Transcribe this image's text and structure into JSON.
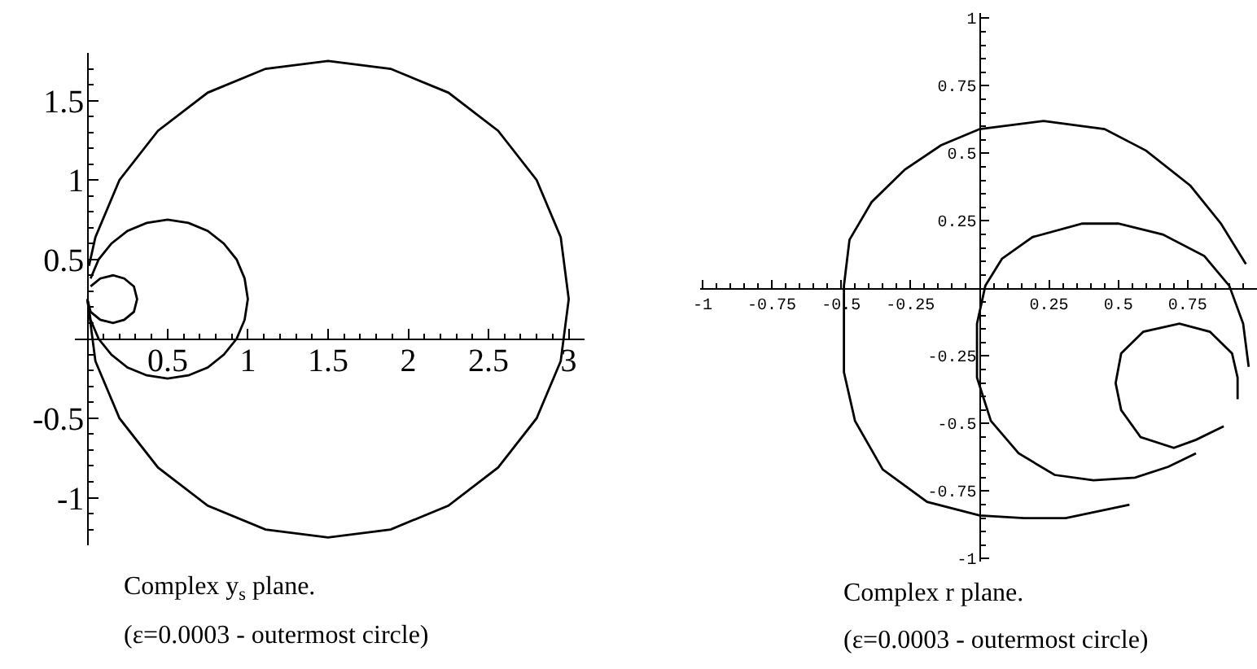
{
  "chart_data": [
    {
      "type": "line",
      "series": [
        {
          "color": "#000000",
          "x": [
            0.0,
            0.05,
            0.2,
            0.44,
            0.75,
            1.11,
            1.5,
            1.89,
            2.25,
            2.56,
            2.8,
            2.95,
            3.0,
            2.95,
            2.8,
            2.56,
            2.25,
            1.89,
            1.5,
            1.11,
            0.75,
            0.44,
            0.2,
            0.05,
            0.01
          ],
          "values": [
            0.25,
            -0.14,
            -0.5,
            -0.81,
            -1.05,
            -1.2,
            -1.25,
            -1.2,
            -1.05,
            -0.81,
            -0.5,
            -0.14,
            0.25,
            0.64,
            1.0,
            1.31,
            1.55,
            1.7,
            1.75,
            1.7,
            1.55,
            1.31,
            1.0,
            0.64,
            0.46
          ]
        },
        {
          "color": "#000000",
          "x": [
            0.0,
            0.02,
            0.07,
            0.15,
            0.25,
            0.37,
            0.5,
            0.63,
            0.75,
            0.85,
            0.93,
            0.98,
            1.0,
            0.98,
            0.93,
            0.85,
            0.75,
            0.63,
            0.5,
            0.37,
            0.25,
            0.15,
            0.07,
            0.02
          ],
          "values": [
            0.25,
            0.12,
            0.0,
            -0.1,
            -0.18,
            -0.23,
            -0.25,
            -0.23,
            -0.18,
            -0.1,
            0.0,
            0.12,
            0.25,
            0.38,
            0.5,
            0.6,
            0.68,
            0.73,
            0.75,
            0.73,
            0.68,
            0.6,
            0.5,
            0.38
          ]
        },
        {
          "color": "#000000",
          "x": [
            0.0,
            0.02,
            0.08,
            0.16,
            0.23,
            0.29,
            0.31,
            0.29,
            0.23,
            0.16,
            0.08,
            0.02
          ],
          "values": [
            0.25,
            0.17,
            0.12,
            0.1,
            0.12,
            0.17,
            0.25,
            0.33,
            0.38,
            0.4,
            0.38,
            0.33
          ]
        }
      ],
      "xlim": [
        -0.08,
        3.1
      ],
      "ylim": [
        -1.3,
        1.8
      ],
      "xticks": [
        {
          "value": 0.1,
          "label": null
        },
        {
          "value": 0.2,
          "label": null
        },
        {
          "value": 0.3,
          "label": null
        },
        {
          "value": 0.4,
          "label": null
        },
        0.5,
        {
          "value": 0.6,
          "label": null
        },
        {
          "value": 0.7,
          "label": null
        },
        {
          "value": 0.8,
          "label": null
        },
        {
          "value": 0.9,
          "label": null
        },
        1,
        {
          "value": 1.1,
          "label": null
        },
        {
          "value": 1.2,
          "label": null
        },
        {
          "value": 1.3,
          "label": null
        },
        {
          "value": 1.4,
          "label": null
        },
        1.5,
        {
          "value": 1.6,
          "label": null
        },
        {
          "value": 1.7,
          "label": null
        },
        {
          "value": 1.8,
          "label": null
        },
        {
          "value": 1.9,
          "label": null
        },
        2,
        {
          "value": 2.1,
          "label": null
        },
        {
          "value": 2.2,
          "label": null
        },
        {
          "value": 2.3,
          "label": null
        },
        {
          "value": 2.4,
          "label": null
        },
        2.5,
        {
          "value": 2.6,
          "label": null
        },
        {
          "value": 2.7,
          "label": null
        },
        {
          "value": 2.8,
          "label": null
        },
        {
          "value": 2.9,
          "label": null
        },
        3
      ],
      "yticks": [
        {
          "value": -1.2,
          "label": null
        },
        {
          "value": -1.1,
          "label": null
        },
        -1,
        {
          "value": -0.9,
          "label": null
        },
        {
          "value": -0.8,
          "label": null
        },
        {
          "value": -0.7,
          "label": null
        },
        {
          "value": -0.6,
          "label": null
        },
        -0.5,
        {
          "value": -0.4,
          "label": null
        },
        {
          "value": -0.3,
          "label": null
        },
        {
          "value": -0.2,
          "label": null
        },
        {
          "value": -0.1,
          "label": null
        },
        {
          "value": 0.1,
          "label": null
        },
        {
          "value": 0.2,
          "label": null
        },
        {
          "value": 0.3,
          "label": null
        },
        {
          "value": 0.4,
          "label": null
        },
        0.5,
        {
          "value": 0.6,
          "label": null
        },
        {
          "value": 0.7,
          "label": null
        },
        {
          "value": 0.8,
          "label": null
        },
        {
          "value": 0.9,
          "label": null
        },
        1,
        {
          "value": 1.1,
          "label": null
        },
        {
          "value": 1.2,
          "label": null
        },
        {
          "value": 1.3,
          "label": null
        },
        {
          "value": 1.4,
          "label": null
        },
        1.5,
        {
          "value": 1.6,
          "label": null
        },
        {
          "value": 1.7,
          "label": null
        }
      ],
      "annotations": [
        "Complex y$_{s}$ plane.",
        "(ε=0.0003 - outermost circle)"
      ]
    },
    {
      "type": "line",
      "series": [
        {
          "color": "#000000",
          "x": [
            0.54,
            0.31,
            0.16,
            0.0,
            -0.19,
            -0.35,
            -0.45,
            -0.49,
            -0.49,
            -0.49,
            -0.47,
            -0.39,
            -0.27,
            -0.14,
            0.0,
            0.23,
            0.45,
            0.6,
            0.76,
            0.87,
            0.96
          ],
          "values": [
            -0.8,
            -0.85,
            -0.85,
            -0.84,
            -0.79,
            -0.67,
            -0.49,
            -0.31,
            -0.13,
            0.01,
            0.18,
            0.32,
            0.44,
            0.53,
            0.59,
            0.62,
            0.59,
            0.51,
            0.38,
            0.24,
            0.09
          ]
        },
        {
          "color": "#000000",
          "x": [
            0.78,
            0.68,
            0.56,
            0.41,
            0.27,
            0.14,
            0.04,
            -0.01,
            -0.01,
            0.02,
            0.08,
            0.19,
            0.37,
            0.5,
            0.66,
            0.81,
            0.9,
            0.95,
            0.97
          ],
          "values": [
            -0.61,
            -0.66,
            -0.7,
            -0.71,
            -0.69,
            -0.61,
            -0.49,
            -0.33,
            -0.13,
            0.01,
            0.11,
            0.19,
            0.24,
            0.24,
            0.2,
            0.12,
            0.01,
            -0.13,
            -0.29
          ]
        },
        {
          "color": "#000000",
          "x": [
            0.88,
            0.78,
            0.7,
            0.58,
            0.51,
            0.49,
            0.51,
            0.59,
            0.72,
            0.83,
            0.91,
            0.93,
            0.93
          ],
          "values": [
            -0.51,
            -0.56,
            -0.59,
            -0.55,
            -0.45,
            -0.35,
            -0.24,
            -0.16,
            -0.13,
            -0.16,
            -0.24,
            -0.33,
            -0.41
          ]
        }
      ],
      "xlim": [
        -1.01,
        1.0
      ],
      "ylim": [
        -1.01,
        1.02
      ],
      "xticks": [
        -1,
        {
          "value": -0.95,
          "label": null
        },
        {
          "value": -0.9,
          "label": null
        },
        {
          "value": -0.85,
          "label": null
        },
        {
          "value": -0.8,
          "label": null
        },
        -0.75,
        {
          "value": -0.7,
          "label": null
        },
        {
          "value": -0.65,
          "label": null
        },
        {
          "value": -0.6,
          "label": null
        },
        {
          "value": -0.55,
          "label": null
        },
        -0.5,
        {
          "value": -0.45,
          "label": null
        },
        {
          "value": -0.4,
          "label": null
        },
        {
          "value": -0.35,
          "label": null
        },
        {
          "value": -0.3,
          "label": null
        },
        -0.25,
        {
          "value": -0.2,
          "label": null
        },
        {
          "value": -0.15,
          "label": null
        },
        {
          "value": -0.1,
          "label": null
        },
        {
          "value": -0.05,
          "label": null
        },
        {
          "value": 0.05,
          "label": null
        },
        {
          "value": 0.1,
          "label": null
        },
        {
          "value": 0.15,
          "label": null
        },
        {
          "value": 0.2,
          "label": null
        },
        0.25,
        {
          "value": 0.3,
          "label": null
        },
        {
          "value": 0.35,
          "label": null
        },
        {
          "value": 0.4,
          "label": null
        },
        {
          "value": 0.45,
          "label": null
        },
        0.5,
        {
          "value": 0.55,
          "label": null
        },
        {
          "value": 0.6,
          "label": null
        },
        {
          "value": 0.65,
          "label": null
        },
        {
          "value": 0.7,
          "label": null
        },
        0.75,
        {
          "value": 0.8,
          "label": null
        },
        {
          "value": 0.85,
          "label": null
        },
        {
          "value": 0.9,
          "label": null
        },
        {
          "value": 0.95,
          "label": null
        }
      ],
      "yticks": [
        -1,
        {
          "value": -0.95,
          "label": null
        },
        {
          "value": -0.9,
          "label": null
        },
        {
          "value": -0.85,
          "label": null
        },
        {
          "value": -0.8,
          "label": null
        },
        -0.75,
        {
          "value": -0.7,
          "label": null
        },
        {
          "value": -0.65,
          "label": null
        },
        {
          "value": -0.6,
          "label": null
        },
        {
          "value": -0.55,
          "label": null
        },
        -0.5,
        {
          "value": -0.45,
          "label": null
        },
        {
          "value": -0.4,
          "label": null
        },
        {
          "value": -0.35,
          "label": null
        },
        {
          "value": -0.3,
          "label": null
        },
        -0.25,
        {
          "value": -0.2,
          "label": null
        },
        {
          "value": -0.15,
          "label": null
        },
        {
          "value": -0.1,
          "label": null
        },
        {
          "value": -0.05,
          "label": null
        },
        {
          "value": 0.05,
          "label": null
        },
        {
          "value": 0.1,
          "label": null
        },
        {
          "value": 0.15,
          "label": null
        },
        {
          "value": 0.2,
          "label": null
        },
        0.25,
        {
          "value": 0.3,
          "label": null
        },
        {
          "value": 0.35,
          "label": null
        },
        {
          "value": 0.4,
          "label": null
        },
        {
          "value": 0.45,
          "label": null
        },
        0.5,
        {
          "value": 0.55,
          "label": null
        },
        {
          "value": 0.6,
          "label": null
        },
        {
          "value": 0.65,
          "label": null
        },
        {
          "value": 0.7,
          "label": null
        },
        0.75,
        {
          "value": 0.8,
          "label": null
        },
        {
          "value": 0.85,
          "label": null
        },
        {
          "value": 0.9,
          "label": null
        },
        {
          "value": 0.95,
          "label": null
        },
        1
      ],
      "annotations": [
        "Complex r plane.",
        "(ε=0.0003 - outermost circle)"
      ]
    }
  ]
}
